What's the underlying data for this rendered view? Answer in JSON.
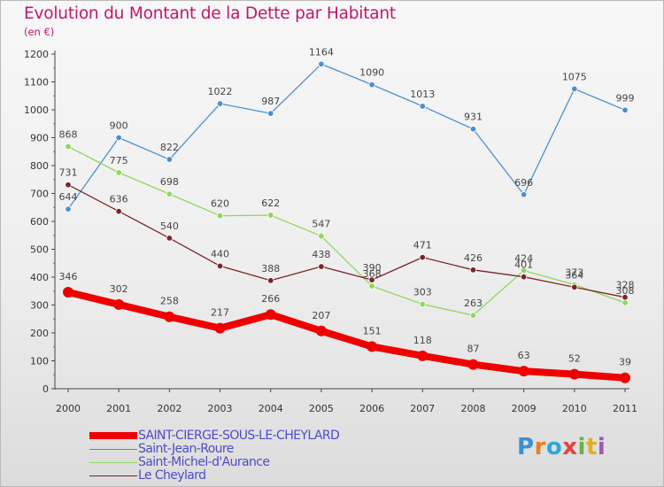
{
  "title": "Evolution du Montant de la Dette par Habitant",
  "unit_label": "(en €)",
  "logo": {
    "letters": [
      {
        "ch": "P",
        "color": "#3a8fd0"
      },
      {
        "ch": "r",
        "color": "#e67e22"
      },
      {
        "ch": "o",
        "color": "#27a9d8"
      },
      {
        "ch": "x",
        "color": "#e0453a"
      },
      {
        "ch": "i",
        "color": "#6ab04c"
      },
      {
        "ch": "t",
        "color": "#e0b020"
      },
      {
        "ch": "i",
        "color": "#9b59b6"
      }
    ]
  },
  "chart_data": {
    "type": "line",
    "title": "Evolution du Montant de la Dette par Habitant",
    "ylabel": "(en €)",
    "xlabel": "",
    "x": [
      "2000",
      "2001",
      "2002",
      "2003",
      "2004",
      "2005",
      "2006",
      "2007",
      "2008",
      "2009",
      "2010",
      "2011"
    ],
    "ylim": [
      0,
      1200
    ],
    "yticks": [
      0,
      100,
      200,
      300,
      400,
      500,
      600,
      700,
      800,
      900,
      1000,
      1100,
      1200
    ],
    "grid": false,
    "legend_position": "bottom-left",
    "series": [
      {
        "name": "Saint-Jean-Roure",
        "color": "#4a8fd0",
        "values": [
          644,
          900,
          822,
          1022,
          987,
          1164,
          1090,
          1013,
          931,
          696,
          1075,
          999
        ]
      },
      {
        "name": "Saint-Michel-d'Aurance",
        "color": "#8fd65a",
        "values": [
          868,
          775,
          698,
          620,
          622,
          547,
          368,
          303,
          263,
          424,
          373,
          308
        ]
      },
      {
        "name": "Le Cheylard",
        "color": "#7a2428",
        "values": [
          731,
          636,
          540,
          440,
          388,
          438,
          390,
          471,
          426,
          401,
          364,
          328
        ]
      },
      {
        "name": "SAINT-CIERGE-SOUS-LE-CHEYLARD",
        "color": "#ee0000",
        "highlight": true,
        "values": [
          346,
          302,
          258,
          217,
          266,
          207,
          151,
          118,
          87,
          63,
          52,
          39
        ]
      }
    ],
    "legend_order": [
      "SAINT-CIERGE-SOUS-LE-CHEYLARD",
      "Saint-Jean-Roure",
      "Saint-Michel-d'Aurance",
      "Le Cheylard"
    ]
  }
}
